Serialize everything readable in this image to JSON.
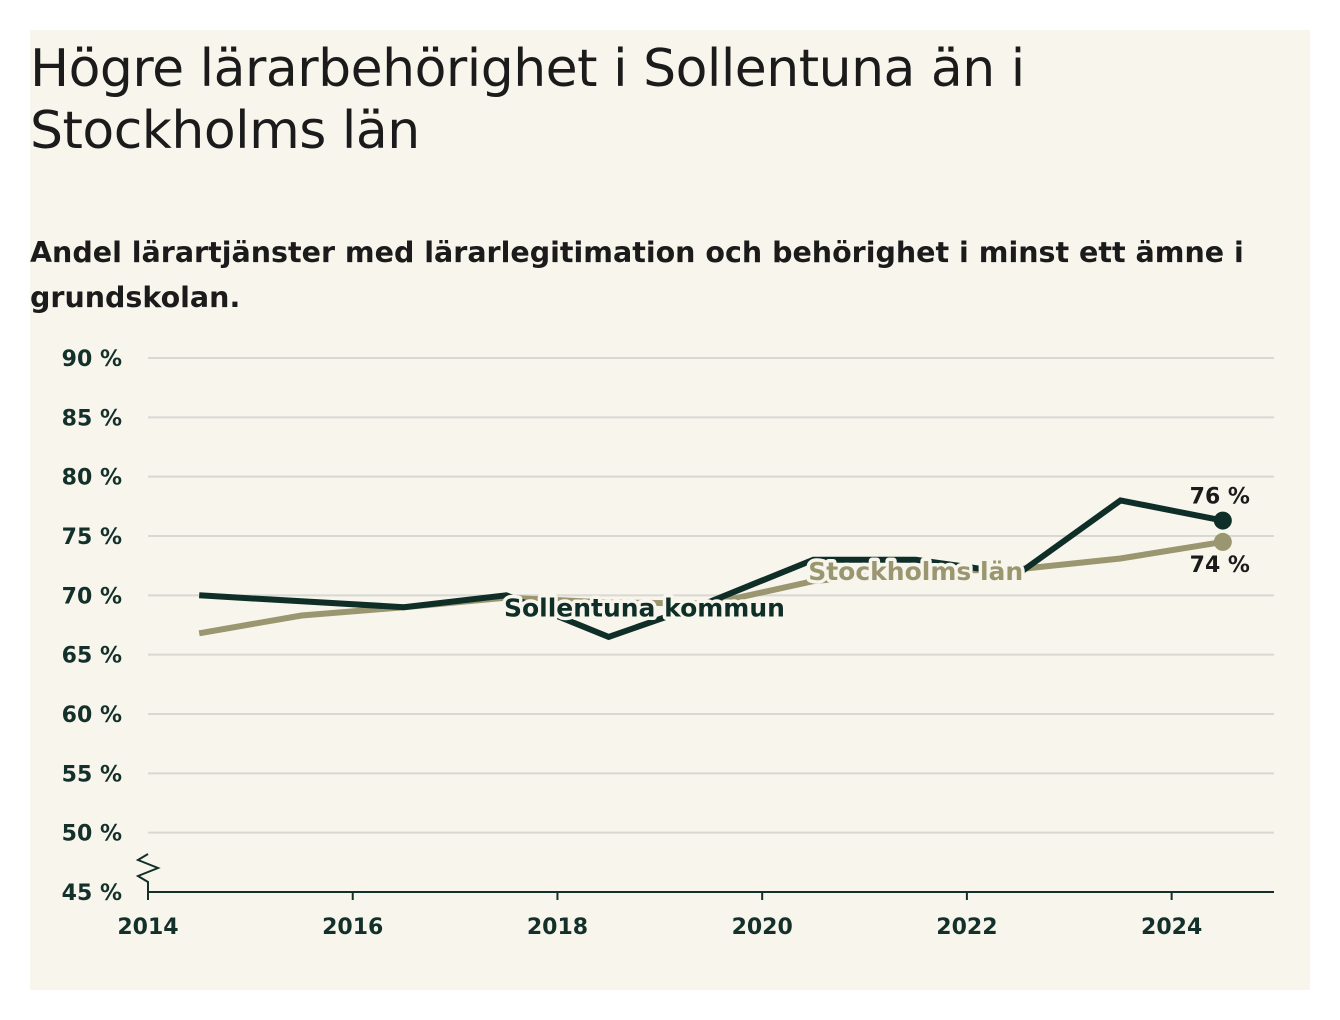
{
  "title": "Högre lärarbehörighet i Sollentuna än i Stockholms län",
  "subtitle": "Andel lärartjänster med lärarlegitimation och behörighet i minst ett ämne i grundskolan.",
  "colors": {
    "background": "#f7f5ec",
    "sollentuna": "#0f2e28",
    "stockholm": "#9a9670"
  },
  "chart_data": {
    "type": "line",
    "title": "Högre lärarbehörighet i Sollentuna än i Stockholms län",
    "subtitle": "Andel lärartjänster med lärarlegitimation och behörighet i minst ett ämne i grundskolan.",
    "xlabel": "",
    "ylabel": "",
    "x": [
      2014.5,
      2015.5,
      2016.5,
      2017.5,
      2018.5,
      2019.5,
      2020.5,
      2021.5,
      2022.5,
      2023.5,
      2024.5
    ],
    "xlim": [
      2014,
      2025
    ],
    "ylim": [
      45,
      90
    ],
    "y_axis_break": true,
    "x_ticks": [
      "2014",
      "2016",
      "2018",
      "2020",
      "2022",
      "2024"
    ],
    "y_ticks": [
      "45 %",
      "50 %",
      "55 %",
      "60 %",
      "65 %",
      "70 %",
      "75 %",
      "80 %",
      "85 %",
      "90 %"
    ],
    "grid": true,
    "legend": "inline labels",
    "series": [
      {
        "name": "Sollentuna kommun",
        "values": [
          70.0,
          69.5,
          69.0,
          70.0,
          66.5,
          69.5,
          73.0,
          73.0,
          71.8,
          78.0,
          76.3
        ],
        "end_label": "76 %"
      },
      {
        "name": "Stockholms län",
        "values": [
          66.8,
          68.3,
          69.0,
          69.8,
          69.4,
          69.3,
          71.2,
          72.0,
          72.2,
          73.1,
          74.5
        ],
        "end_label": "74 %"
      }
    ]
  }
}
